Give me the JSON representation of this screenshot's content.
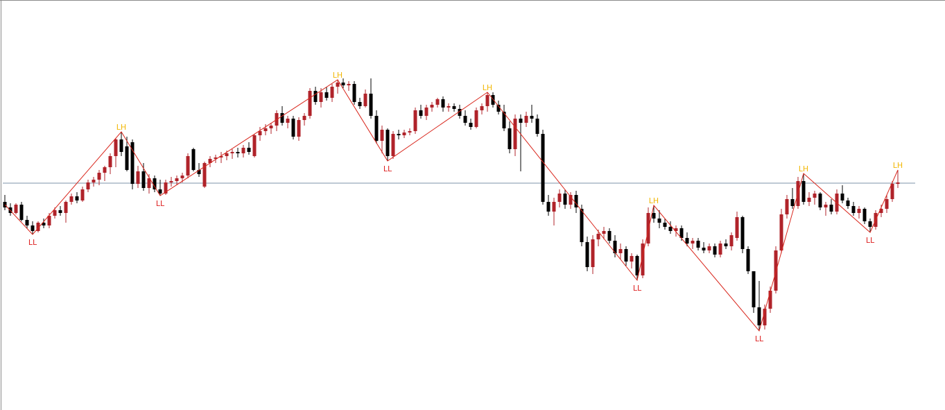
{
  "chart_data": {
    "type": "candlestick",
    "ylim": [
      0,
      591
    ],
    "open": [
      300,
      292,
      284,
      296,
      274,
      266,
      258,
      270,
      266,
      280,
      288,
      284,
      300,
      308,
      302,
      318,
      328,
      332,
      342,
      350,
      366,
      390,
      380,
      386,
      326,
      344,
      320,
      334,
      318,
      312,
      328,
      330,
      334,
      338,
      376,
      346,
      322,
      356,
      362,
      364,
      366,
      370,
      372,
      370,
      378,
      366,
      396,
      402,
      406,
      410,
      428,
      414,
      420,
      394,
      418,
      424,
      460,
      444,
      458,
      450,
      466,
      472,
      468,
      470,
      444,
      438,
      456,
      424,
      388,
      404,
      366,
      398,
      396,
      400,
      402,
      432,
      424,
      436,
      440,
      448,
      436,
      438,
      434,
      424,
      414,
      408,
      432,
      438,
      454,
      440,
      430,
      406,
      376,
      420,
      414,
      424,
      420,
      398,
      300,
      286,
      300,
      312,
      296,
      310,
      290,
      242,
      206,
      246,
      254,
      258,
      244,
      226,
      232,
      214,
      222,
      194,
      240,
      284,
      276,
      270,
      264,
      258,
      262,
      248,
      240,
      244,
      234,
      230,
      236,
      224,
      240,
      236,
      248,
      278,
      232,
      200,
      148,
      122,
      146,
      172,
      230,
      282,
      304,
      294,
      330,
      300,
      306,
      312,
      292,
      296,
      286,
      312,
      302,
      294,
      284,
      290,
      272,
      264,
      284,
      290,
      304,
      326
    ],
    "high": [
      310,
      298,
      298,
      300,
      280,
      272,
      272,
      276,
      284,
      292,
      294,
      302,
      312,
      314,
      322,
      332,
      336,
      346,
      352,
      370,
      392,
      401,
      394,
      390,
      352,
      356,
      340,
      338,
      332,
      332,
      336,
      338,
      342,
      370,
      378,
      356,
      358,
      366,
      368,
      372,
      374,
      376,
      378,
      382,
      386,
      398,
      408,
      412,
      414,
      432,
      438,
      424,
      424,
      422,
      428,
      464,
      466,
      464,
      466,
      470,
      476,
      478,
      474,
      474,
      450,
      462,
      478,
      432,
      410,
      406,
      402,
      404,
      404,
      406,
      436,
      440,
      440,
      444,
      450,
      452,
      442,
      442,
      440,
      432,
      420,
      436,
      442,
      458,
      458,
      446,
      440,
      416,
      426,
      426,
      430,
      440,
      426,
      404,
      310,
      306,
      318,
      318,
      314,
      316,
      296,
      250,
      252,
      260,
      264,
      262,
      252,
      240,
      236,
      226,
      224,
      246,
      292,
      295,
      288,
      276,
      272,
      266,
      266,
      256,
      248,
      248,
      242,
      240,
      240,
      244,
      246,
      256,
      286,
      280,
      236,
      200,
      186,
      152,
      178,
      236,
      290,
      310,
      320,
      336,
      341,
      314,
      316,
      314,
      300,
      304,
      318,
      324,
      306,
      300,
      294,
      292,
      276,
      288,
      296,
      310,
      330,
      346
    ],
    "low": [
      288,
      280,
      282,
      272,
      262,
      253,
      256,
      262,
      262,
      276,
      280,
      270,
      296,
      298,
      300,
      314,
      322,
      324,
      330,
      340,
      350,
      366,
      344,
      318,
      320,
      316,
      312,
      314,
      309,
      310,
      322,
      324,
      328,
      334,
      344,
      336,
      320,
      350,
      356,
      356,
      360,
      362,
      364,
      364,
      368,
      364,
      388,
      396,
      398,
      402,
      410,
      406,
      390,
      388,
      410,
      420,
      440,
      436,
      446,
      444,
      456,
      464,
      460,
      440,
      434,
      436,
      420,
      384,
      370,
      359,
      362,
      390,
      392,
      396,
      398,
      420,
      418,
      430,
      436,
      430,
      430,
      430,
      420,
      410,
      404,
      406,
      426,
      430,
      436,
      426,
      402,
      370,
      366,
      344,
      408,
      414,
      394,
      296,
      280,
      266,
      292,
      290,
      290,
      284,
      236,
      200,
      196,
      236,
      246,
      240,
      220,
      218,
      208,
      204,
      187,
      190,
      236,
      270,
      262,
      260,
      254,
      250,
      244,
      236,
      232,
      230,
      226,
      226,
      220,
      220,
      232,
      230,
      244,
      226,
      196,
      140,
      114,
      116,
      140,
      168,
      226,
      276,
      290,
      290,
      296,
      294,
      296,
      288,
      280,
      282,
      282,
      298,
      290,
      280,
      276,
      268,
      256,
      260,
      278,
      284,
      300,
      320
    ],
    "close": [
      292,
      284,
      296,
      274,
      266,
      258,
      270,
      266,
      280,
      288,
      284,
      300,
      308,
      302,
      318,
      328,
      332,
      342,
      350,
      366,
      390,
      372,
      346,
      326,
      344,
      320,
      334,
      318,
      312,
      328,
      330,
      334,
      338,
      366,
      346,
      340,
      356,
      362,
      364,
      366,
      370,
      372,
      370,
      378,
      372,
      396,
      402,
      406,
      410,
      428,
      414,
      420,
      394,
      418,
      424,
      460,
      444,
      458,
      450,
      466,
      472,
      468,
      470,
      444,
      438,
      456,
      424,
      388,
      404,
      366,
      398,
      396,
      400,
      402,
      432,
      424,
      436,
      440,
      448,
      436,
      438,
      434,
      424,
      414,
      408,
      432,
      438,
      454,
      440,
      430,
      406,
      376,
      420,
      414,
      424,
      420,
      398,
      300,
      286,
      300,
      312,
      296,
      310,
      292,
      242,
      206,
      246,
      254,
      258,
      244,
      226,
      232,
      214,
      222,
      194,
      240,
      284,
      276,
      270,
      264,
      258,
      262,
      248,
      240,
      244,
      234,
      230,
      236,
      224,
      240,
      236,
      252,
      278,
      232,
      200,
      148,
      122,
      146,
      172,
      230,
      282,
      304,
      294,
      330,
      300,
      306,
      312,
      292,
      296,
      286,
      312,
      302,
      294,
      284,
      290,
      272,
      264,
      284,
      290,
      304,
      326,
      328
    ],
    "bull_color": "#b0232a",
    "bear_color": "#000000",
    "price_line": 327,
    "price_line_color": "#7d93a8",
    "zigzag": {
      "index": [
        0,
        5,
        21,
        28,
        60,
        69,
        87,
        114,
        117,
        136,
        144,
        156,
        161
      ],
      "values": [
        296,
        253,
        401,
        309,
        476,
        359,
        458,
        187,
        295,
        114,
        341,
        256,
        346
      ],
      "labels": [
        null,
        "LL",
        "LH",
        "LL",
        "LH",
        "LL",
        "LH",
        "LL",
        "LH",
        "LL",
        "LH",
        "LL",
        "LH"
      ],
      "label_colors": [
        null,
        "#dd2222",
        "#f2b705",
        "#dd2222",
        "#f2b705",
        "#dd2222",
        "#f2b705",
        "#dd2222",
        "#f2b705",
        "#dd2222",
        "#f2b705",
        "#dd2222",
        "#f2b705"
      ],
      "color": "#d9261c"
    }
  }
}
